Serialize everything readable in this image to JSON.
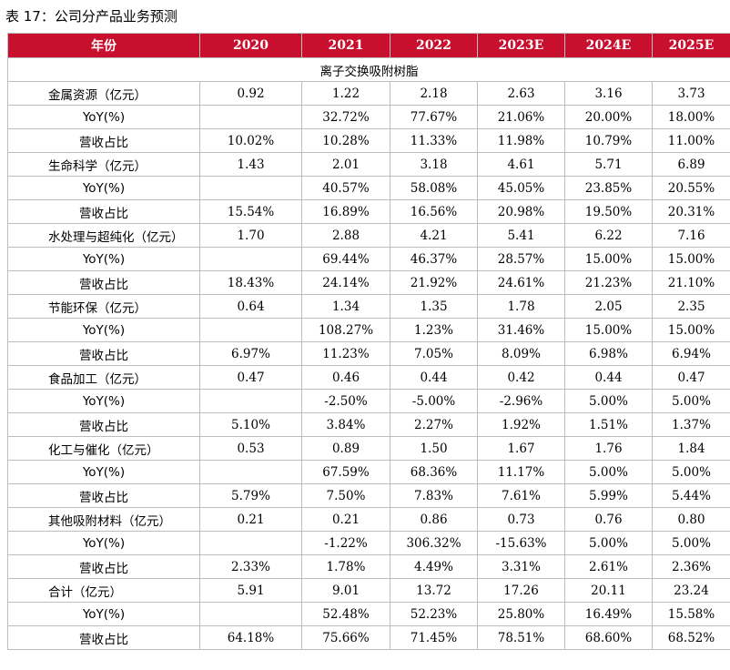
{
  "caption": "表 17：公司分产品业务预测",
  "colors": {
    "header_bg": "#c8102e",
    "header_text": "#ffffff",
    "border": "#bdbdbd"
  },
  "table": {
    "headers": [
      "年份",
      "2020",
      "2021",
      "2022",
      "2023E",
      "2024E",
      "2025E"
    ],
    "section_title": "离子交换吸附树脂",
    "rows": [
      {
        "label": "金属资源（亿元）",
        "align": "left",
        "values": [
          "0.92",
          "1.22",
          "2.18",
          "2.63",
          "3.16",
          "3.73"
        ]
      },
      {
        "label": "YoY(%)",
        "align": "center",
        "values": [
          "",
          "32.72%",
          "77.67%",
          "21.06%",
          "20.00%",
          "18.00%"
        ]
      },
      {
        "label": "营收占比",
        "align": "center",
        "values": [
          "10.02%",
          "10.28%",
          "11.33%",
          "11.98%",
          "10.79%",
          "11.00%"
        ]
      },
      {
        "label": "生命科学（亿元）",
        "align": "left",
        "values": [
          "1.43",
          "2.01",
          "3.18",
          "4.61",
          "5.71",
          "6.89"
        ]
      },
      {
        "label": "YoY(%)",
        "align": "center",
        "values": [
          "",
          "40.57%",
          "58.08%",
          "45.05%",
          "23.85%",
          "20.55%"
        ]
      },
      {
        "label": "营收占比",
        "align": "center",
        "values": [
          "15.54%",
          "16.89%",
          "16.56%",
          "20.98%",
          "19.50%",
          "20.31%"
        ]
      },
      {
        "label": "水处理与超纯化（亿元）",
        "align": "left",
        "values": [
          "1.70",
          "2.88",
          "4.21",
          "5.41",
          "6.22",
          "7.16"
        ]
      },
      {
        "label": "YoY(%)",
        "align": "center",
        "values": [
          "",
          "69.44%",
          "46.37%",
          "28.57%",
          "15.00%",
          "15.00%"
        ]
      },
      {
        "label": "营收占比",
        "align": "center",
        "values": [
          "18.43%",
          "24.14%",
          "21.92%",
          "24.61%",
          "21.23%",
          "21.10%"
        ]
      },
      {
        "label": "节能环保（亿元）",
        "align": "left",
        "values": [
          "0.64",
          "1.34",
          "1.35",
          "1.78",
          "2.05",
          "2.35"
        ]
      },
      {
        "label": "YoY(%)",
        "align": "center",
        "values": [
          "",
          "108.27%",
          "1.23%",
          "31.46%",
          "15.00%",
          "15.00%"
        ]
      },
      {
        "label": "营收占比",
        "align": "center",
        "values": [
          "6.97%",
          "11.23%",
          "7.05%",
          "8.09%",
          "6.98%",
          "6.94%"
        ]
      },
      {
        "label": "食品加工（亿元）",
        "align": "left",
        "values": [
          "0.47",
          "0.46",
          "0.44",
          "0.42",
          "0.44",
          "0.47"
        ]
      },
      {
        "label": "YoY(%)",
        "align": "center",
        "values": [
          "",
          "-2.50%",
          "-5.00%",
          "-2.96%",
          "5.00%",
          "5.00%"
        ]
      },
      {
        "label": "营收占比",
        "align": "center",
        "values": [
          "5.10%",
          "3.84%",
          "2.27%",
          "1.92%",
          "1.51%",
          "1.37%"
        ]
      },
      {
        "label": "化工与催化（亿元）",
        "align": "left",
        "values": [
          "0.53",
          "0.89",
          "1.50",
          "1.67",
          "1.76",
          "1.84"
        ]
      },
      {
        "label": "YoY(%)",
        "align": "center",
        "values": [
          "",
          "67.59%",
          "68.36%",
          "11.17%",
          "5.00%",
          "5.00%"
        ]
      },
      {
        "label": "营收占比",
        "align": "center",
        "values": [
          "5.79%",
          "7.50%",
          "7.83%",
          "7.61%",
          "5.99%",
          "5.44%"
        ]
      },
      {
        "label": "其他吸附材料（亿元）",
        "align": "left",
        "values": [
          "0.21",
          "0.21",
          "0.86",
          "0.73",
          "0.76",
          "0.80"
        ]
      },
      {
        "label": "YoY(%)",
        "align": "center",
        "values": [
          "",
          "-1.22%",
          "306.32%",
          "-15.63%",
          "5.00%",
          "5.00%"
        ]
      },
      {
        "label": "营收占比",
        "align": "center",
        "values": [
          "2.33%",
          "1.78%",
          "4.49%",
          "3.31%",
          "2.61%",
          "2.36%"
        ]
      },
      {
        "label": "合计（亿元）",
        "align": "left",
        "values": [
          "5.91",
          "9.01",
          "13.72",
          "17.26",
          "20.11",
          "23.24"
        ]
      },
      {
        "label": "YoY(%)",
        "align": "center",
        "values": [
          "",
          "52.48%",
          "52.23%",
          "25.80%",
          "16.49%",
          "15.58%"
        ]
      },
      {
        "label": "营收占比",
        "align": "center",
        "values": [
          "64.18%",
          "75.66%",
          "71.45%",
          "78.51%",
          "68.60%",
          "68.52%"
        ]
      }
    ]
  }
}
